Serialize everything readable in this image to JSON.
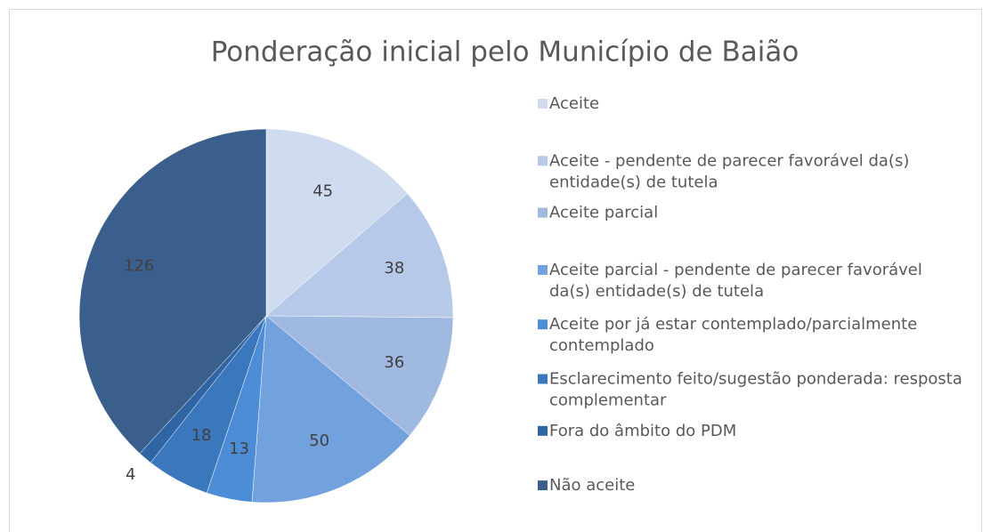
{
  "chart_data": {
    "type": "pie",
    "title": "Ponderação inicial pelo Município de Baião",
    "categories": [
      "Aceite",
      "Aceite - pendente de parecer favorável da(s) entidade(s) de tutela",
      "Aceite parcial",
      "Aceite parcial - pendente de parecer favorável da(s) entidade(s) de tutela",
      "Aceite por já estar contemplado/parcialmente contemplado",
      "Esclarecimento feito/sugestão ponderada: resposta complementar",
      "Fora do âmbito do PDM",
      "Não aceite"
    ],
    "values": [
      45,
      38,
      36,
      50,
      13,
      18,
      4,
      126
    ],
    "colors": [
      "#cfdbef",
      "#b7c9e8",
      "#9fb9e1",
      "#72a2dd",
      "#4d8dd6",
      "#3b77bd",
      "#2f65a3",
      "#3a5f8d"
    ],
    "legend": "right"
  }
}
